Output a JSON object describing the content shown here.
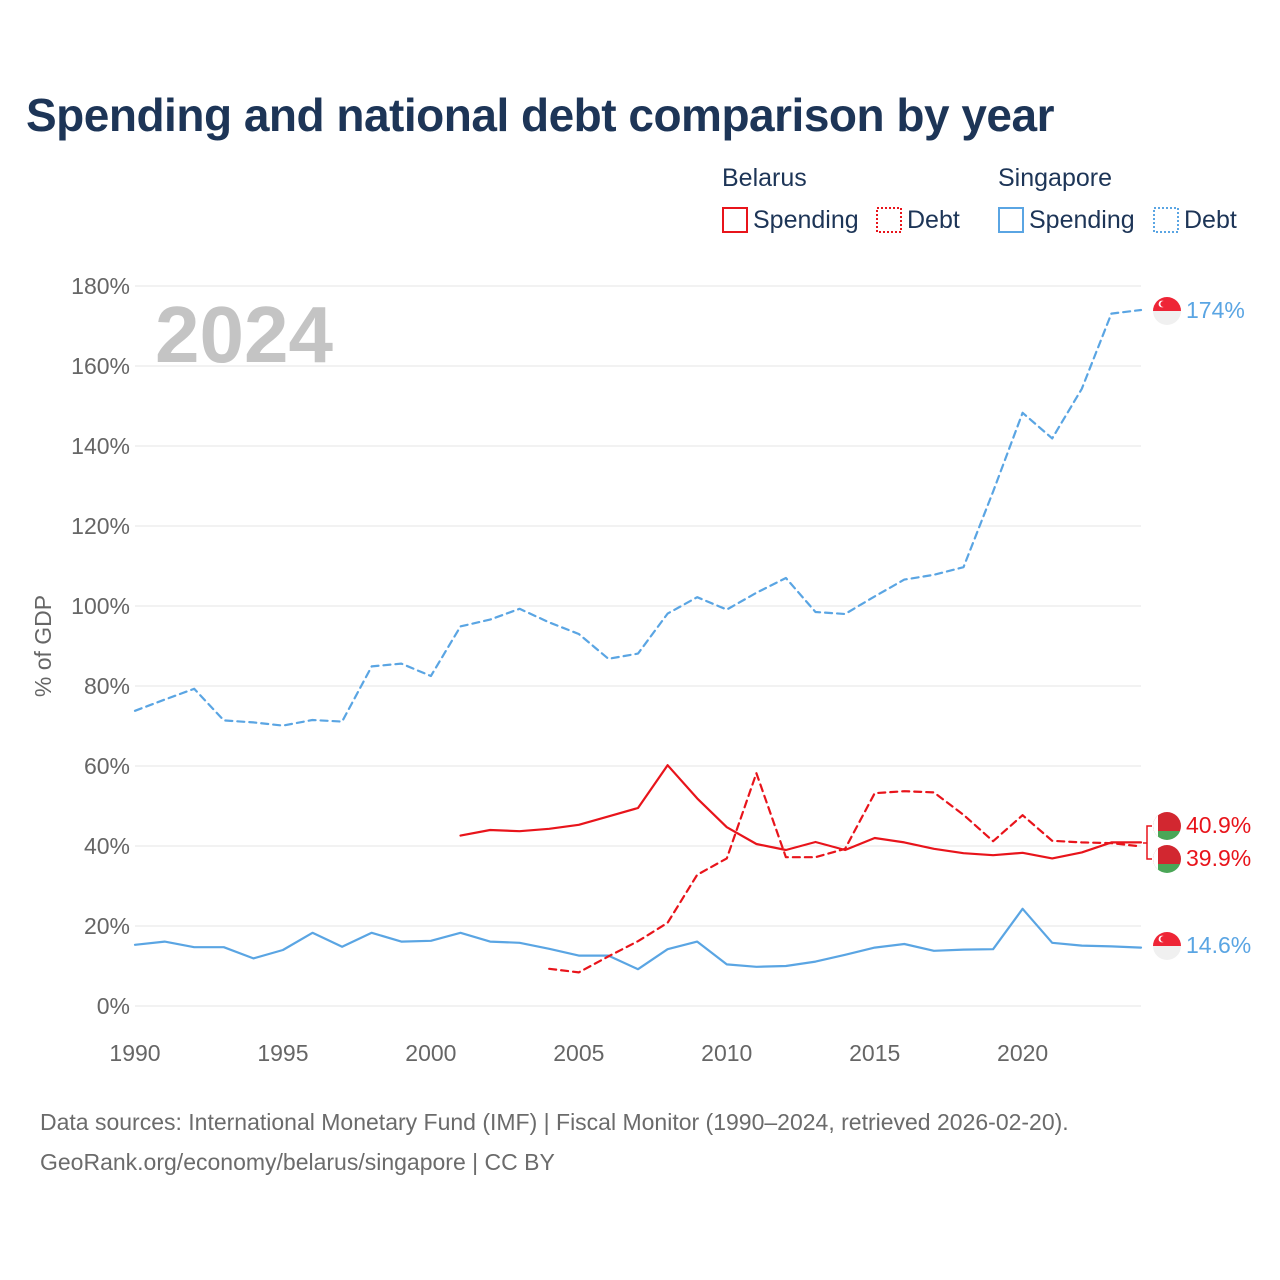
{
  "title": "Spending and national debt comparison by year",
  "colors": {
    "belarus": "#e8141b",
    "singapore": "#5aa5e3",
    "grid": "#e6e6e6",
    "title": "#1d3557"
  },
  "legend": {
    "groups": [
      {
        "name": "Belarus",
        "items": [
          {
            "label": "Spending",
            "style": "solid"
          },
          {
            "label": "Debt",
            "style": "dotted"
          }
        ]
      },
      {
        "name": "Singapore",
        "items": [
          {
            "label": "Spending",
            "style": "solid"
          },
          {
            "label": "Debt",
            "style": "dotted"
          }
        ]
      }
    ]
  },
  "current_year": "2024",
  "end_labels": {
    "singapore_debt": "174%",
    "belarus_top": "40.9%",
    "belarus_bottom": "39.9%",
    "singapore_spending": "14.6%"
  },
  "footer": {
    "line1": "Data sources: International Monetary Fund (IMF) | Fiscal Monitor (1990–2024, retrieved 2026-02-20).",
    "line2": "GeoRank.org/economy/belarus/singapore | CC BY"
  },
  "chart_data": {
    "type": "line",
    "title": "Spending and national debt comparison by year",
    "xlabel": "",
    "ylabel": "% of GDP",
    "xlim": [
      1990,
      2024
    ],
    "ylim": [
      0,
      180
    ],
    "x_ticks": [
      1990,
      1995,
      2000,
      2005,
      2010,
      2015,
      2020
    ],
    "y_ticks": [
      0,
      20,
      40,
      60,
      80,
      100,
      120,
      140,
      160,
      180
    ],
    "y_tick_labels": [
      "0%",
      "20%",
      "40%",
      "60%",
      "80%",
      "100%",
      "120%",
      "140%",
      "160%",
      "180%"
    ],
    "grid": true,
    "series": [
      {
        "name": "Singapore Debt",
        "country": "singapore",
        "style": "dashed",
        "x": [
          1990,
          1991,
          1992,
          1993,
          1994,
          1995,
          1996,
          1997,
          1998,
          1999,
          2000,
          2001,
          2002,
          2003,
          2004,
          2005,
          2006,
          2007,
          2008,
          2009,
          2010,
          2011,
          2012,
          2013,
          2014,
          2015,
          2016,
          2017,
          2018,
          2019,
          2020,
          2021,
          2022,
          2023,
          2024
        ],
        "values": [
          73.8,
          76.6,
          79.3,
          71.4,
          70.9,
          70.1,
          71.5,
          71.1,
          84.9,
          85.6,
          82.5,
          94.9,
          96.6,
          99.3,
          95.9,
          93.0,
          86.8,
          88.1,
          98.1,
          102.2,
          99.1,
          103.3,
          107.0,
          98.5,
          98.0,
          102.4,
          106.6,
          107.8,
          109.7,
          128.6,
          148.3,
          141.9,
          154.3,
          173.1,
          174.0
        ]
      },
      {
        "name": "Singapore Spending",
        "country": "singapore",
        "style": "solid",
        "x": [
          1990,
          1991,
          1992,
          1993,
          1994,
          1995,
          1996,
          1997,
          1998,
          1999,
          2000,
          2001,
          2002,
          2003,
          2004,
          2005,
          2006,
          2007,
          2008,
          2009,
          2010,
          2011,
          2012,
          2013,
          2014,
          2015,
          2016,
          2017,
          2018,
          2019,
          2020,
          2021,
          2022,
          2023,
          2024
        ],
        "values": [
          15.3,
          16.1,
          14.7,
          14.7,
          11.9,
          14.0,
          18.3,
          14.8,
          18.3,
          16.1,
          16.3,
          18.3,
          16.1,
          15.8,
          14.3,
          12.6,
          12.6,
          9.2,
          14.2,
          16.1,
          10.4,
          9.8,
          10.0,
          11.1,
          12.8,
          14.6,
          15.5,
          13.8,
          14.1,
          14.2,
          24.3,
          15.8,
          15.1,
          14.9,
          14.6
        ]
      },
      {
        "name": "Belarus Spending",
        "country": "belarus",
        "style": "solid",
        "x": [
          2001,
          2002,
          2003,
          2004,
          2005,
          2006,
          2007,
          2008,
          2009,
          2010,
          2011,
          2012,
          2013,
          2014,
          2015,
          2016,
          2017,
          2018,
          2019,
          2020,
          2021,
          2022,
          2023,
          2024
        ],
        "values": [
          42.6,
          44.0,
          43.7,
          44.3,
          45.3,
          47.4,
          49.5,
          60.2,
          51.9,
          44.7,
          40.5,
          39.0,
          41.0,
          39.0,
          42.0,
          40.9,
          39.3,
          38.2,
          37.7,
          38.3,
          36.9,
          38.4,
          40.9,
          40.9
        ]
      },
      {
        "name": "Belarus Debt",
        "country": "belarus",
        "style": "dashed",
        "x": [
          2004,
          2005,
          2006,
          2007,
          2008,
          2009,
          2010,
          2011,
          2012,
          2013,
          2014,
          2015,
          2016,
          2017,
          2018,
          2019,
          2020,
          2021,
          2022,
          2023,
          2024
        ],
        "values": [
          9.3,
          8.4,
          12.4,
          16.2,
          20.8,
          32.8,
          36.9,
          58.2,
          37.2,
          37.2,
          39.3,
          53.2,
          53.7,
          53.4,
          47.8,
          41.2,
          47.7,
          41.3,
          40.9,
          40.7,
          39.9
        ]
      }
    ]
  }
}
